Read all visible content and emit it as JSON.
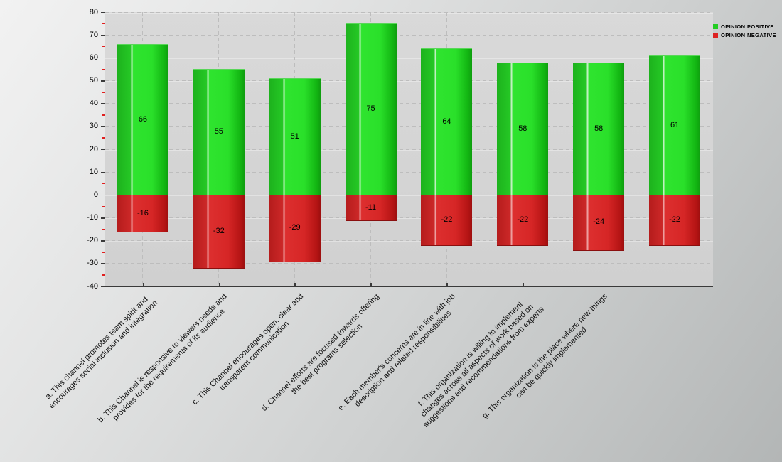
{
  "legend": {
    "items": [
      {
        "label": "OPINION POSITIVE",
        "color": "#22cc22"
      },
      {
        "label": "OPINION NEGATIVE",
        "color": "#dd2222"
      }
    ]
  },
  "chart_data": {
    "type": "bar",
    "title": "",
    "xlabel": "",
    "ylabel": "",
    "ylim": [
      -40,
      80
    ],
    "ytick_step": 10,
    "ytick_minor_step": 5,
    "grid": true,
    "legend_position": "top-right",
    "categories": [
      "a. This channel promotes team spirit and\nencourages social inclusion and integration",
      "b. This Channel is responsive to viewers needs and\nprovides for the requirements of its audience",
      "c. This Channel encourages open, clear and\ntransparent communication",
      "d. Channel efforts are focused towards offering\nthe best programs selection",
      "e. Each member's concerns are in line with job\ndescription and related responsibilities",
      "f. This organization is willing to implement\nchanges across all aspects of work based on\nsuggestions and recommendations from experts",
      "g. This organization is the place where new things\ncan be quickly implemented",
      ""
    ],
    "series": [
      {
        "name": "OPINION POSITIVE",
        "color": "#22cc22",
        "values": [
          66,
          55,
          51,
          75,
          64,
          58,
          58,
          61
        ]
      },
      {
        "name": "OPINION NEGATIVE",
        "color": "#dd2222",
        "values": [
          -16,
          -32,
          -29,
          -11,
          -22,
          -22,
          -24,
          -22
        ]
      }
    ]
  }
}
